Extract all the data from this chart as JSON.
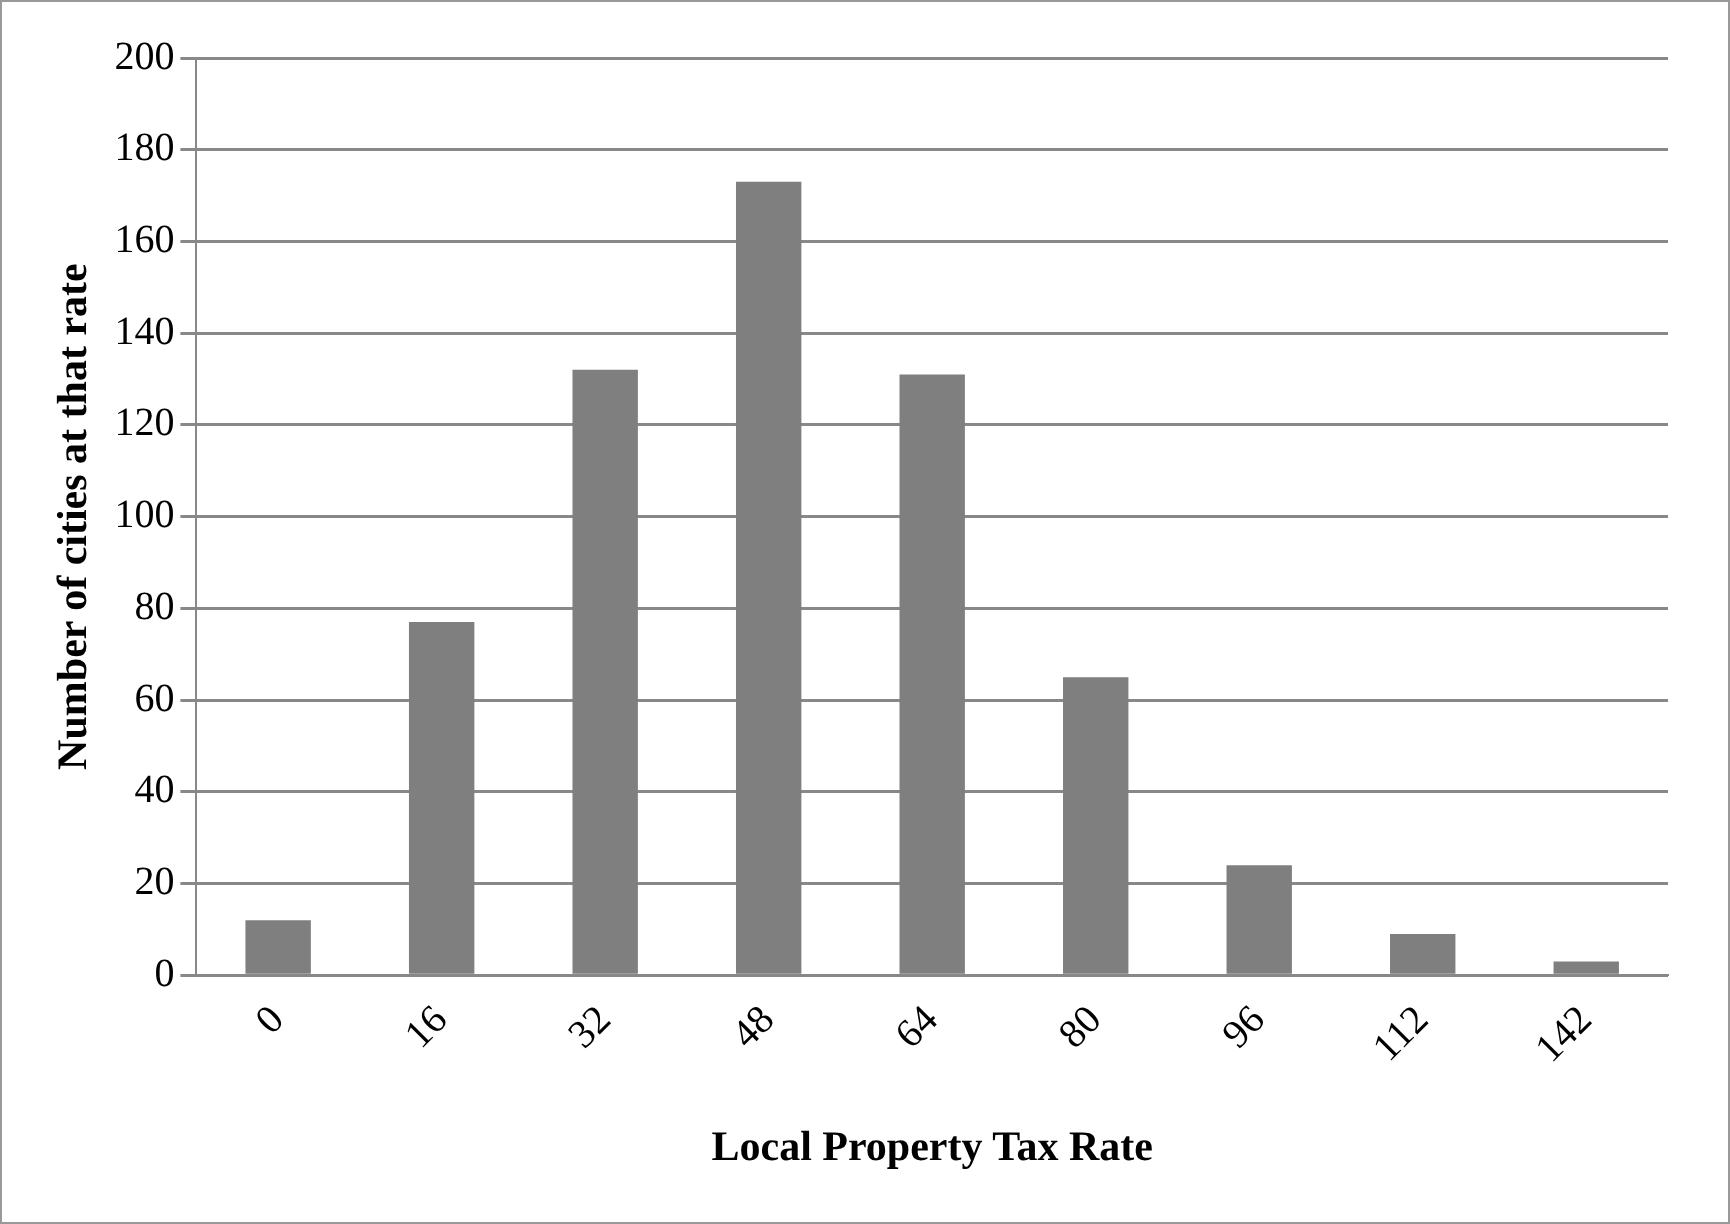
{
  "chart_data": {
    "type": "bar",
    "xlabel": "Local Property Tax Rate",
    "ylabel": "Number of cities at that rate",
    "categories": [
      "0",
      "16",
      "32",
      "48",
      "64",
      "80",
      "96",
      "112",
      "142"
    ],
    "values": [
      12,
      77,
      132,
      173,
      131,
      65,
      24,
      9,
      3
    ],
    "color": "#7f7f7f",
    "ylim": [
      0,
      200
    ],
    "yticks": [
      0,
      20,
      40,
      60,
      80,
      100,
      120,
      140,
      160,
      180,
      200
    ],
    "grid": "y",
    "legend": false
  }
}
